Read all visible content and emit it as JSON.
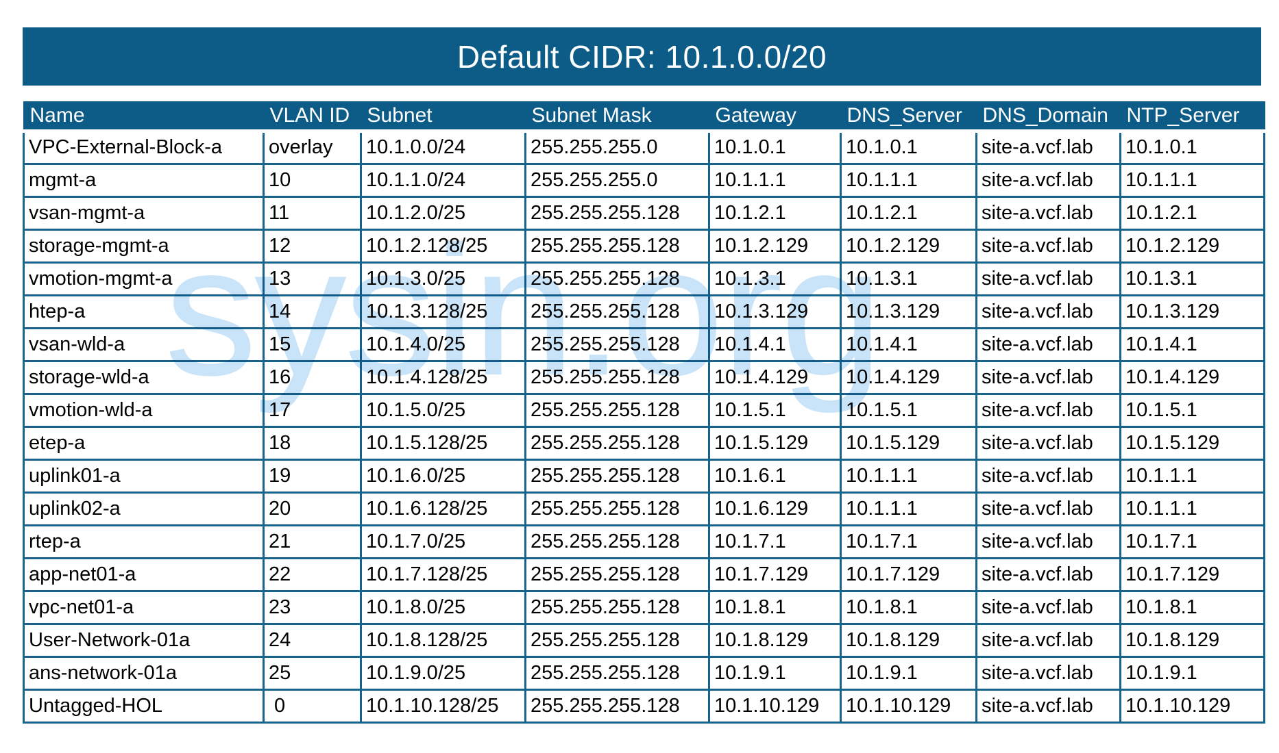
{
  "title": "Default CIDR: 10.1.0.0/20",
  "watermark": "sysin.org",
  "colors": {
    "header_bg": "#0d5c87",
    "border": "#16648e",
    "title_text": "#ffffff",
    "cell_text": "#000000",
    "watermark": "#c9e4f8"
  },
  "table": {
    "columns": [
      "Name",
      "VLAN ID",
      "Subnet",
      "Subnet Mask",
      "Gateway",
      "DNS_Server",
      "DNS_Domain",
      "NTP_Server"
    ],
    "rows": [
      [
        "VPC-External-Block-a",
        "overlay",
        "10.1.0.0/24",
        "255.255.255.0",
        "10.1.0.1",
        "10.1.0.1",
        "site-a.vcf.lab",
        "10.1.0.1"
      ],
      [
        "mgmt-a",
        "10",
        "10.1.1.0/24",
        "255.255.255.0",
        "10.1.1.1",
        "10.1.1.1",
        "site-a.vcf.lab",
        "10.1.1.1"
      ],
      [
        "vsan-mgmt-a",
        "11",
        "10.1.2.0/25",
        "255.255.255.128",
        "10.1.2.1",
        "10.1.2.1",
        "site-a.vcf.lab",
        "10.1.2.1"
      ],
      [
        "storage-mgmt-a",
        "12",
        "10.1.2.128/25",
        "255.255.255.128",
        "10.1.2.129",
        "10.1.2.129",
        "site-a.vcf.lab",
        "10.1.2.129"
      ],
      [
        "vmotion-mgmt-a",
        "13",
        "10.1.3.0/25",
        "255.255.255.128",
        "10.1.3.1",
        "10.1.3.1",
        "site-a.vcf.lab",
        "10.1.3.1"
      ],
      [
        "htep-a",
        "14",
        "10.1.3.128/25",
        "255.255.255.128",
        "10.1.3.129",
        "10.1.3.129",
        "site-a.vcf.lab",
        "10.1.3.129"
      ],
      [
        "vsan-wld-a",
        "15",
        "10.1.4.0/25",
        "255.255.255.128",
        "10.1.4.1",
        "10.1.4.1",
        "site-a.vcf.lab",
        "10.1.4.1"
      ],
      [
        "storage-wld-a",
        "16",
        "10.1.4.128/25",
        "255.255.255.128",
        "10.1.4.129",
        "10.1.4.129",
        "site-a.vcf.lab",
        "10.1.4.129"
      ],
      [
        "vmotion-wld-a",
        "17",
        "10.1.5.0/25",
        "255.255.255.128",
        "10.1.5.1",
        "10.1.5.1",
        "site-a.vcf.lab",
        "10.1.5.1"
      ],
      [
        "etep-a",
        "18",
        "10.1.5.128/25",
        "255.255.255.128",
        "10.1.5.129",
        "10.1.5.129",
        "site-a.vcf.lab",
        "10.1.5.129"
      ],
      [
        "uplink01-a",
        "19",
        "10.1.6.0/25",
        "255.255.255.128",
        "10.1.6.1",
        "10.1.1.1",
        "site-a.vcf.lab",
        "10.1.1.1"
      ],
      [
        "uplink02-a",
        "20",
        "10.1.6.128/25",
        "255.255.255.128",
        "10.1.6.129",
        "10.1.1.1",
        "site-a.vcf.lab",
        "10.1.1.1"
      ],
      [
        "rtep-a",
        "21",
        "10.1.7.0/25",
        "255.255.255.128",
        "10.1.7.1",
        "10.1.7.1",
        "site-a.vcf.lab",
        "10.1.7.1"
      ],
      [
        "app-net01-a",
        "22",
        "10.1.7.128/25",
        "255.255.255.128",
        "10.1.7.129",
        "10.1.7.129",
        "site-a.vcf.lab",
        "10.1.7.129"
      ],
      [
        "vpc-net01-a",
        "23",
        "10.1.8.0/25",
        "255.255.255.128",
        "10.1.8.1",
        "10.1.8.1",
        "site-a.vcf.lab",
        "10.1.8.1"
      ],
      [
        "User-Network-01a",
        "24",
        "10.1.8.128/25",
        "255.255.255.128",
        "10.1.8.129",
        "10.1.8.129",
        "site-a.vcf.lab",
        "10.1.8.129"
      ],
      [
        "ans-network-01a",
        "25",
        "10.1.9.0/25",
        "255.255.255.128",
        "10.1.9.1",
        "10.1.9.1",
        "site-a.vcf.lab",
        "10.1.9.1"
      ],
      [
        "Untagged-HOL",
        " 0",
        "10.1.10.128/25",
        "255.255.255.128",
        "10.1.10.129",
        "10.1.10.129",
        "site-a.vcf.lab",
        "10.1.10.129"
      ]
    ]
  }
}
